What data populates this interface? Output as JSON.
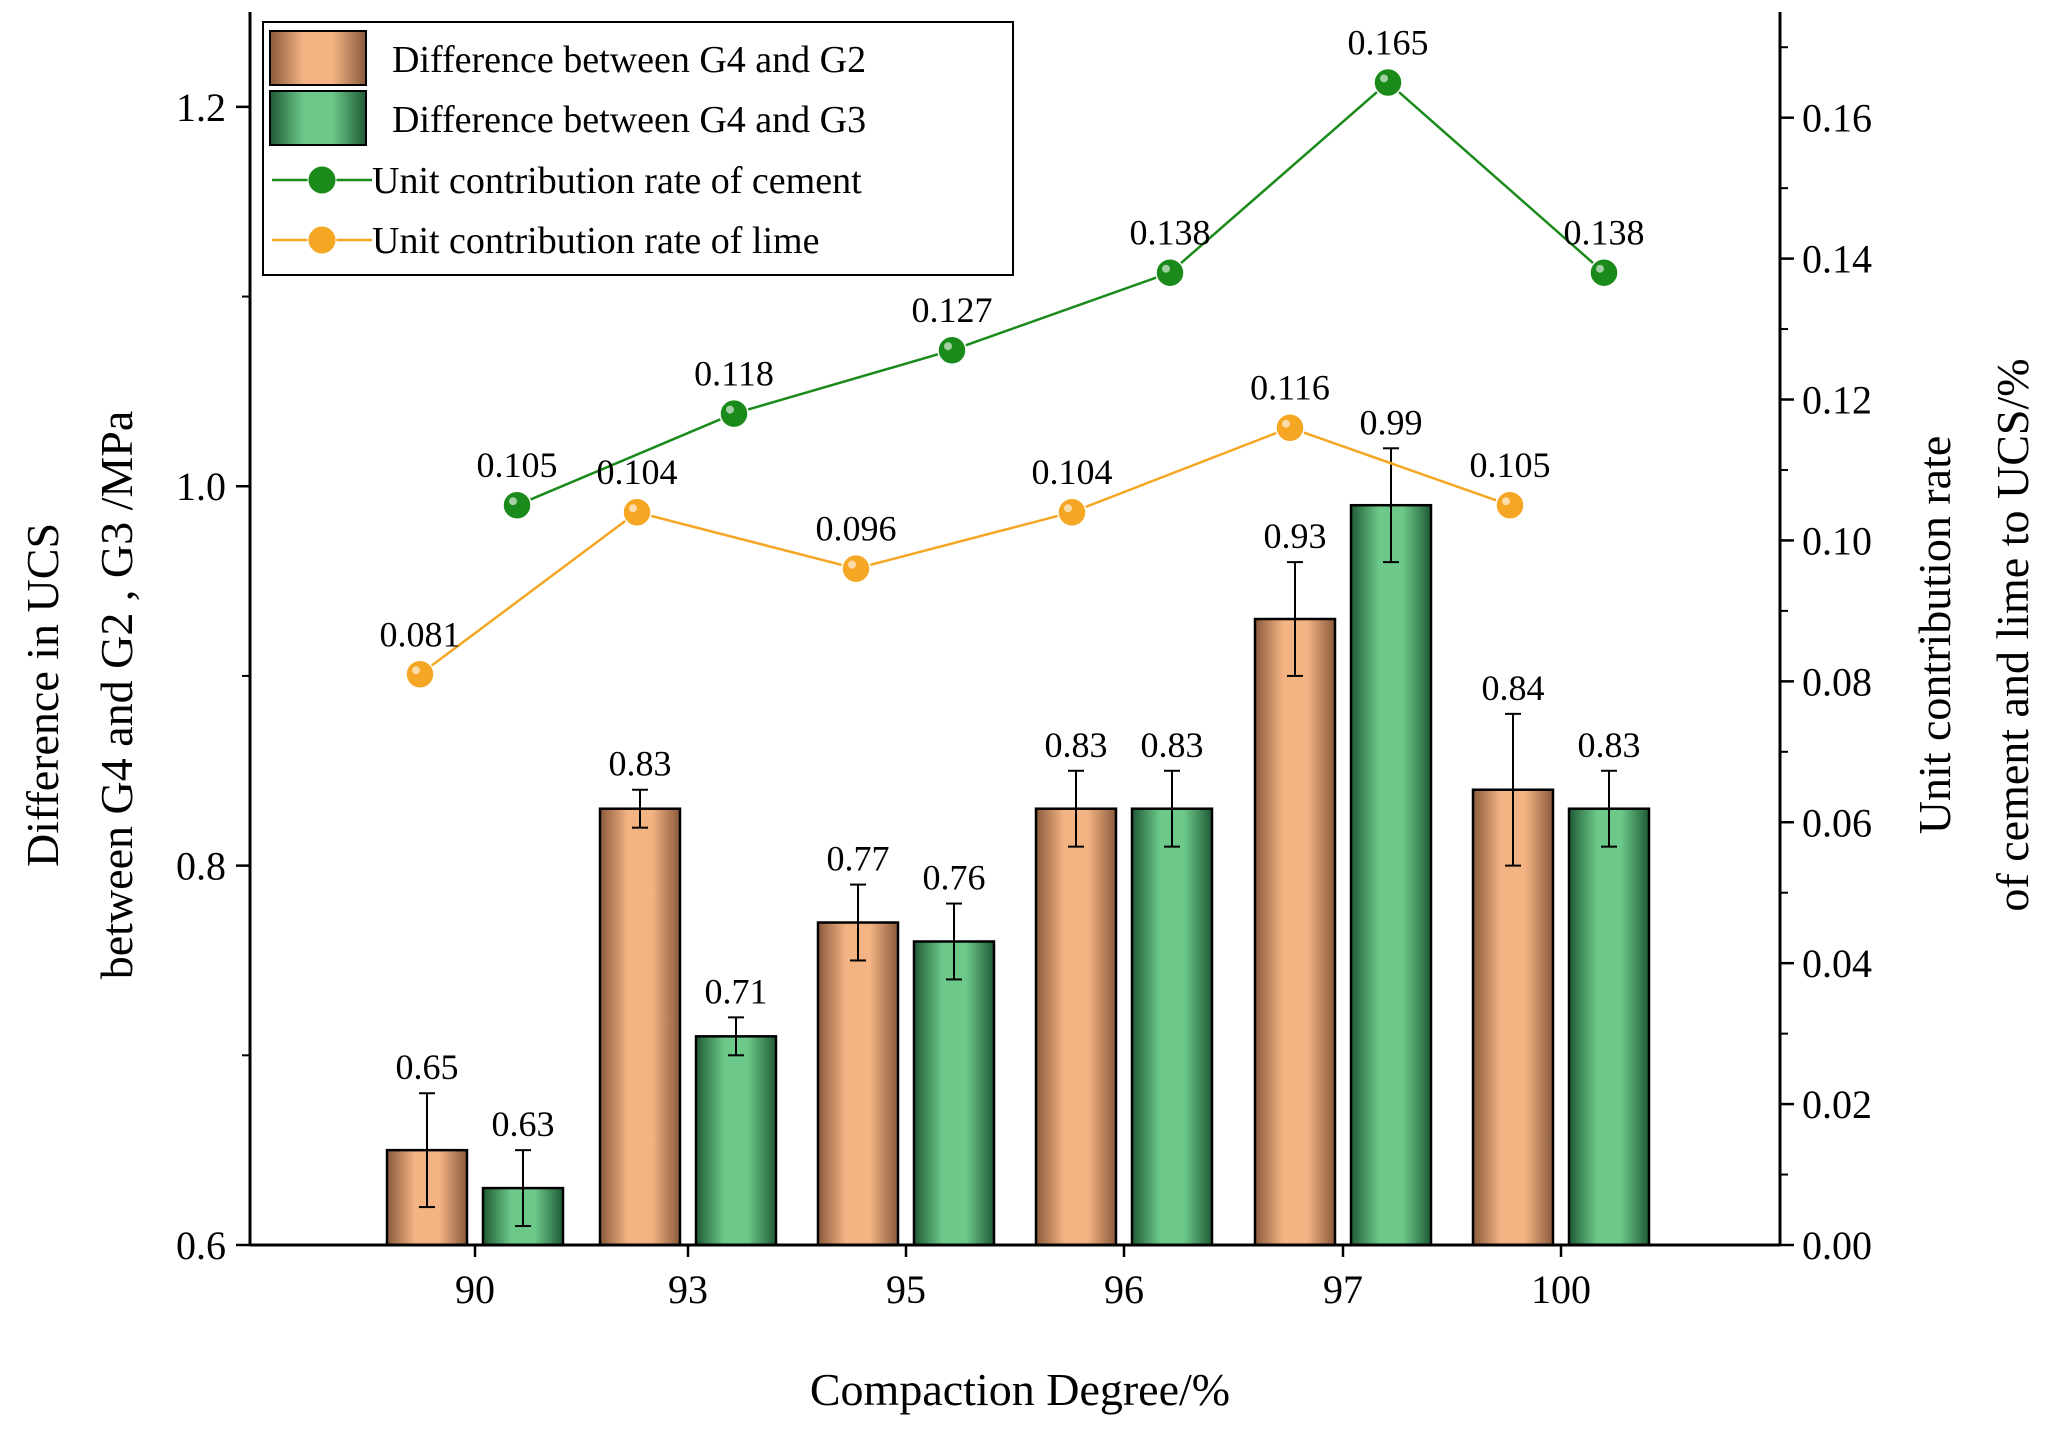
{
  "chart_data": {
    "type": "bar+line",
    "categories": [
      "90",
      "93",
      "95",
      "96",
      "97",
      "100"
    ],
    "xlabel": "Compaction Degree/%",
    "ylabel_left_lines": [
      "Difference in UCS",
      "between G4 and G2 , G3 /MPa"
    ],
    "ylabel_right_lines": [
      "Unit contribution rate",
      "of cement and lime to UCS/%"
    ],
    "ylim_left": [
      0.6,
      1.25
    ],
    "yticks_left": [
      "0.6",
      "0.8",
      "1.0",
      "1.2"
    ],
    "ylim_right": [
      0.0,
      0.175
    ],
    "yticks_right": [
      "0.00",
      "0.02",
      "0.04",
      "0.06",
      "0.08",
      "0.10",
      "0.12",
      "0.14",
      "0.16"
    ],
    "bar_series": [
      {
        "name": "Difference between G4 and G2",
        "color": "#f4b383",
        "color_dark": "#8a5a3c",
        "values": [
          0.65,
          0.83,
          0.77,
          0.83,
          0.93,
          0.84
        ],
        "errors": [
          0.03,
          0.01,
          0.02,
          0.02,
          0.03,
          0.04
        ],
        "labels": [
          "0.65",
          "0.83",
          "0.77",
          "0.83",
          "0.93",
          "0.84"
        ]
      },
      {
        "name": "Difference between G4 and G3",
        "color": "#6cc98a",
        "color_dark": "#1f5a35",
        "values": [
          0.63,
          0.71,
          0.76,
          0.83,
          0.99,
          0.83
        ],
        "errors": [
          0.02,
          0.01,
          0.02,
          0.02,
          0.03,
          0.02
        ],
        "labels": [
          "0.63",
          "0.71",
          "0.76",
          "0.83",
          "0.99",
          "0.83"
        ]
      }
    ],
    "line_series": [
      {
        "name": "Unit contribution rate of cement",
        "color": "#1a8a1a",
        "values": [
          0.105,
          0.118,
          0.127,
          0.138,
          0.165,
          0.138
        ],
        "labels": [
          "0.105",
          "0.118",
          "0.127",
          "0.138",
          "0.165",
          "0.138"
        ]
      },
      {
        "name": "Unit contribution rate of lime",
        "color": "#f5a623",
        "values": [
          0.081,
          0.104,
          0.096,
          0.104,
          0.116,
          0.105
        ],
        "labels": [
          "0.081",
          "0.104",
          "0.096",
          "0.104",
          "0.116",
          "0.105"
        ]
      }
    ],
    "legend_position": "top-left"
  }
}
